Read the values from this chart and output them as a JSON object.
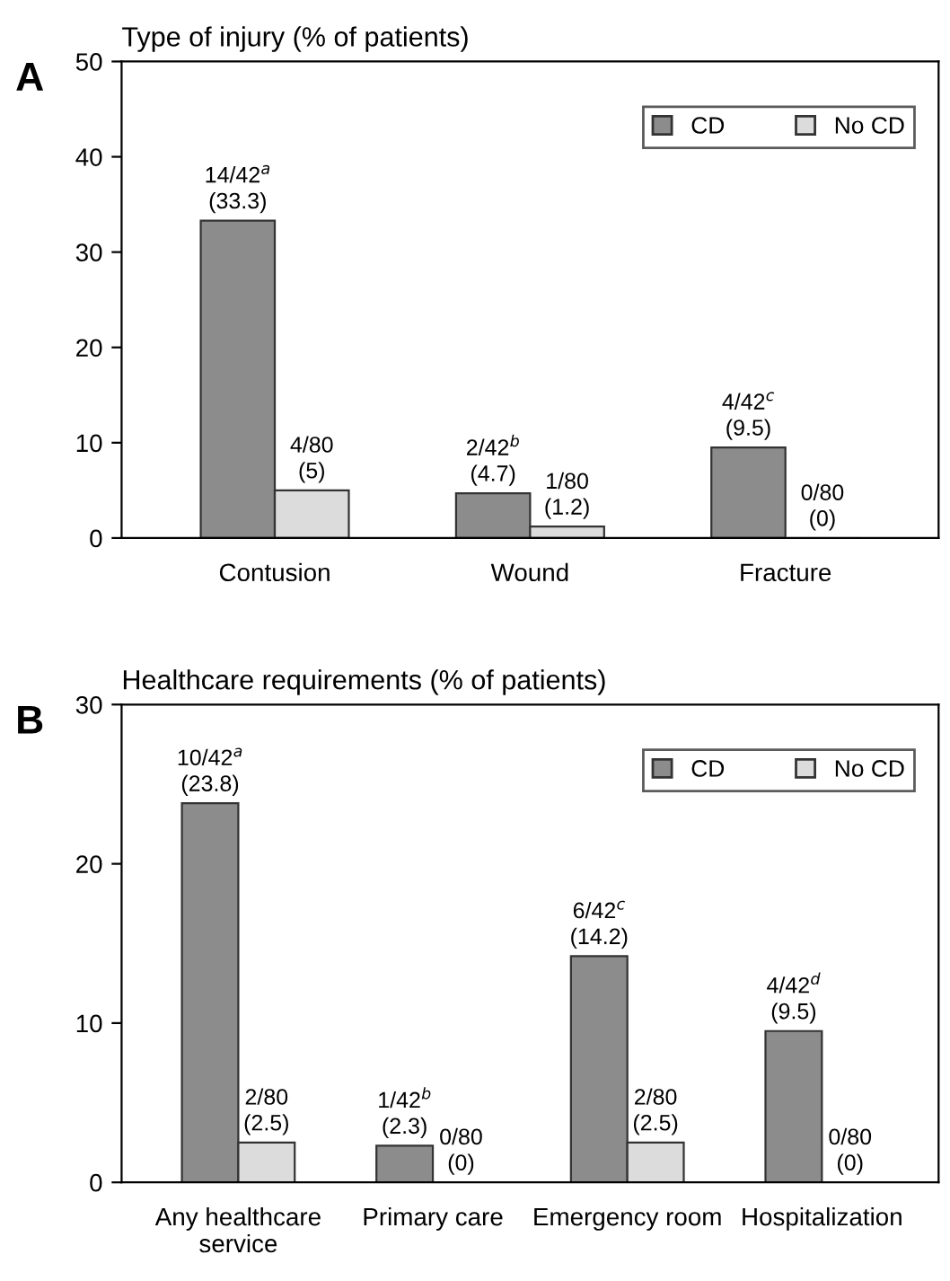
{
  "chart_data": [
    {
      "type": "bar",
      "title": "Type of injury (% of patients)",
      "annotations": [
        "A"
      ],
      "categories": [
        "Contusion",
        "Wound",
        "Fracture"
      ],
      "series": [
        {
          "name": "CD",
          "color": "#8c8c8c",
          "values": [
            33.3,
            4.7,
            9.5
          ],
          "value_labels": [
            "14/42$^{a}$\n(33.3)",
            "2/42$^{b}$\n(4.7)",
            "4/42$^{c}$\n(9.5)"
          ]
        },
        {
          "name": "No CD",
          "color": "#dcdcdc",
          "values": [
            5,
            1.2,
            0
          ],
          "value_labels": [
            "4/80\n(5)",
            "1/80\n(1.2)",
            "0/80\n(0)"
          ]
        }
      ],
      "ylim": [
        0,
        50
      ],
      "yticks": [
        0,
        10,
        20,
        30,
        40,
        50
      ],
      "grid": false,
      "legend": "top right"
    },
    {
      "type": "bar",
      "title": "Healthcare requirements (% of patients)",
      "annotations": [
        "B"
      ],
      "categories": [
        "Any healthcare\nservice",
        "Primary care",
        "Emergency room",
        "Hospitalization"
      ],
      "series": [
        {
          "name": "CD",
          "color": "#8c8c8c",
          "values": [
            23.8,
            2.3,
            14.2,
            9.5
          ],
          "value_labels": [
            "10/42$^{a}$\n(23.8)",
            "1/42$^{b}$\n(2.3)",
            "6/42$^{c}$\n(14.2)",
            "4/42$^{d}$\n(9.5)"
          ]
        },
        {
          "name": "No CD",
          "color": "#dcdcdc",
          "values": [
            2.5,
            0,
            2.5,
            0
          ],
          "value_labels": [
            "2/80\n(2.5)",
            "0/80\n(0)",
            "2/80\n(2.5)",
            "0/80\n(0)"
          ]
        }
      ],
      "ylim": [
        0,
        30
      ],
      "yticks": [
        0,
        10,
        20,
        30
      ],
      "grid": false,
      "legend": "top right"
    }
  ]
}
